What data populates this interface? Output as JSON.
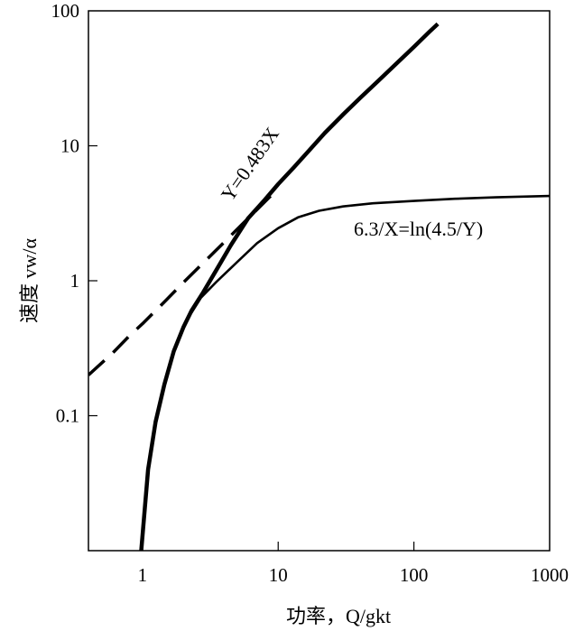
{
  "chart_data": {
    "type": "line",
    "xscale": "log",
    "yscale": "log",
    "xlim": [
      0.4,
      1000
    ],
    "ylim": [
      0.01,
      100
    ],
    "xticks": [
      {
        "value": 1,
        "label": "1"
      },
      {
        "value": 10,
        "label": "10"
      },
      {
        "value": 100,
        "label": "100"
      },
      {
        "value": 1000,
        "label": "1000"
      }
    ],
    "yticks": [
      {
        "value": 0.1,
        "label": "0.1"
      },
      {
        "value": 1,
        "label": "1"
      },
      {
        "value": 10,
        "label": "10"
      },
      {
        "value": 100,
        "label": "100"
      }
    ],
    "xlabel": "功率，Q/gkt",
    "ylabel": "速度 vw/α",
    "grid": false,
    "legend": "none",
    "series": [
      {
        "style": "solid-thick",
        "annotation": "Y=0.483X",
        "x": [
          0.98,
          1.1,
          1.25,
          1.45,
          1.7,
          2.0,
          2.3,
          2.8,
          3.5,
          4.5,
          6,
          8,
          10,
          13,
          17,
          22,
          30,
          40,
          55,
          75,
          100,
          130,
          150
        ],
        "y": [
          0.01,
          0.04,
          0.09,
          0.17,
          0.3,
          0.45,
          0.6,
          0.82,
          1.2,
          1.85,
          2.9,
          4.0,
          5.2,
          6.9,
          9.3,
          12.4,
          17,
          22.5,
          30.5,
          41,
          54,
          70,
          80
        ]
      },
      {
        "style": "dashed",
        "x": [
          0.4,
          0.6,
          0.8,
          1,
          1.5,
          2,
          3,
          4,
          6,
          8,
          10
        ],
        "y": [
          0.2,
          0.29,
          0.39,
          0.48,
          0.72,
          0.97,
          1.45,
          1.93,
          2.9,
          3.86,
          4.83
        ]
      },
      {
        "style": "solid-thin",
        "annotation": "6.3/X=ln(4.5/Y)",
        "x": [
          2.3,
          2.7,
          3.5,
          5,
          7,
          10,
          14,
          20,
          30,
          50,
          100,
          200,
          400,
          1000
        ],
        "y": [
          0.58,
          0.75,
          0.98,
          1.38,
          1.9,
          2.45,
          2.95,
          3.3,
          3.55,
          3.75,
          3.9,
          4.05,
          4.15,
          4.25
        ]
      }
    ],
    "annotations": [
      {
        "text": "Y=0.483X"
      },
      {
        "text": "6.3/X=ln(4.5/Y)"
      }
    ],
    "colors": {
      "line": "#000000",
      "background": "#ffffff"
    }
  }
}
